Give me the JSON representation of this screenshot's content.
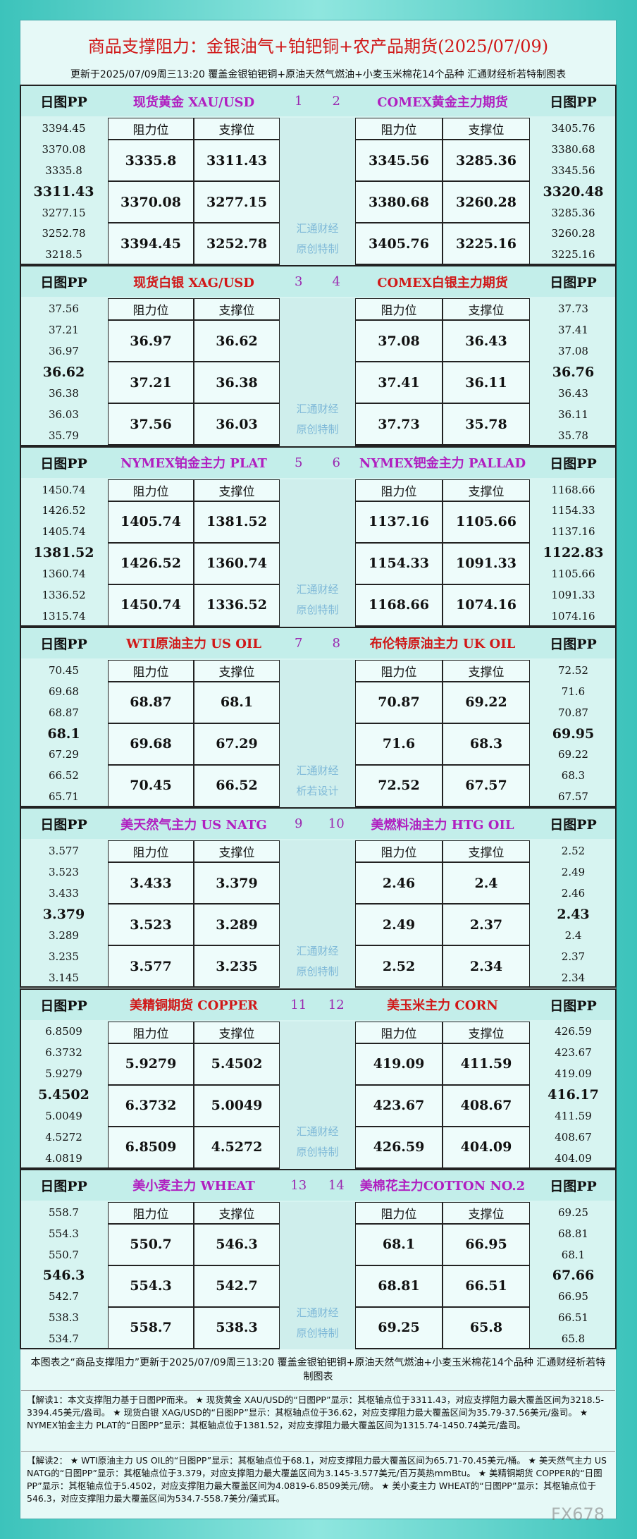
{
  "header": {
    "title": "商品支撑阻力：金银油气+铂钯铜+农产品期货(2025/07/09)",
    "subtitle": "更新于2025/07/09周三13:20 覆盖金银铂钯铜+原油天然气燃油+小麦玉米棉花14个品种 汇通财经析若特制图表"
  },
  "labels": {
    "pp": "日图PP",
    "res": "阻力位",
    "sup": "支撑位"
  },
  "sections": [
    {
      "color": "#b01fc0",
      "watermark": [
        "汇通财经",
        "原创特制"
      ],
      "left": {
        "name": "现货黄金 XAU/USD",
        "num": "1",
        "pp": [
          3394.45,
          3370.08,
          3335.8,
          3311.43,
          3277.15,
          3252.78,
          3218.5
        ],
        "rows": [
          [
            3335.8,
            3311.43
          ],
          [
            3370.08,
            3277.15
          ],
          [
            3394.45,
            3252.78
          ]
        ]
      },
      "right": {
        "name": "COMEX黄金主力期货",
        "num": "2",
        "pp": [
          3405.76,
          3380.68,
          3345.56,
          3320.48,
          3285.36,
          3260.28,
          3225.16
        ],
        "rows": [
          [
            3345.56,
            3285.36
          ],
          [
            3380.68,
            3260.28
          ],
          [
            3405.76,
            3225.16
          ]
        ]
      }
    },
    {
      "color": "#d01818",
      "watermark": [
        "汇通财经",
        "原创特制"
      ],
      "left": {
        "name": "现货白银 XAG/USD",
        "num": "3",
        "pp": [
          37.56,
          37.21,
          36.97,
          36.62,
          36.38,
          36.03,
          35.79
        ],
        "rows": [
          [
            36.97,
            36.62
          ],
          [
            37.21,
            36.38
          ],
          [
            37.56,
            36.03
          ]
        ]
      },
      "right": {
        "name": "COMEX白银主力期货",
        "num": "4",
        "pp": [
          37.73,
          37.41,
          37.08,
          36.76,
          36.43,
          36.11,
          35.78
        ],
        "rows": [
          [
            37.08,
            36.43
          ],
          [
            37.41,
            36.11
          ],
          [
            37.73,
            35.78
          ]
        ]
      }
    },
    {
      "color": "#b01fc0",
      "watermark": [
        "汇通财经",
        "原创特制"
      ],
      "left": {
        "name": "NYMEX铂金主力 PLAT",
        "num": "5",
        "pp": [
          1450.74,
          1426.52,
          1405.74,
          1381.52,
          1360.74,
          1336.52,
          1315.74
        ],
        "rows": [
          [
            1405.74,
            1381.52
          ],
          [
            1426.52,
            1360.74
          ],
          [
            1450.74,
            1336.52
          ]
        ]
      },
      "right": {
        "name": "NYMEX钯金主力 PALLAD",
        "num": "6",
        "pp": [
          1168.66,
          1154.33,
          1137.16,
          1122.83,
          1105.66,
          1091.33,
          1074.16
        ],
        "rows": [
          [
            1137.16,
            1105.66
          ],
          [
            1154.33,
            1091.33
          ],
          [
            1168.66,
            1074.16
          ]
        ]
      }
    },
    {
      "color": "#d01818",
      "watermark": [
        "汇通财经",
        "析若设计"
      ],
      "left": {
        "name": "WTI原油主力 US OIL",
        "num": "7",
        "pp": [
          70.45,
          69.68,
          68.87,
          68.1,
          67.29,
          66.52,
          65.71
        ],
        "rows": [
          [
            68.87,
            68.1
          ],
          [
            69.68,
            67.29
          ],
          [
            70.45,
            66.52
          ]
        ]
      },
      "right": {
        "name": "布伦特原油主力 UK OIL",
        "num": "8",
        "pp": [
          72.52,
          71.6,
          70.87,
          69.95,
          69.22,
          68.3,
          67.57
        ],
        "rows": [
          [
            70.87,
            69.22
          ],
          [
            71.6,
            68.3
          ],
          [
            72.52,
            67.57
          ]
        ]
      }
    },
    {
      "color": "#b01fc0",
      "watermark": [
        "汇通财经",
        "原创特制"
      ],
      "left": {
        "name": "美天然气主力 US NATG",
        "num": "9",
        "pp": [
          3.577,
          3.523,
          3.433,
          3.379,
          3.289,
          3.235,
          3.145
        ],
        "rows": [
          [
            3.433,
            3.379
          ],
          [
            3.523,
            3.289
          ],
          [
            3.577,
            3.235
          ]
        ]
      },
      "right": {
        "name": "美燃料油主力 HTG OIL",
        "num": "10",
        "pp": [
          2.52,
          2.49,
          2.46,
          2.43,
          2.4,
          2.37,
          2.34
        ],
        "rows": [
          [
            2.46,
            2.4
          ],
          [
            2.49,
            2.37
          ],
          [
            2.52,
            2.34
          ]
        ]
      }
    },
    {
      "color": "#d01818",
      "watermark": [
        "汇通财经",
        "原创特制"
      ],
      "left": {
        "name": "美精铜期货 COPPER",
        "num": "11",
        "pp": [
          6.8509,
          6.3732,
          5.9279,
          5.4502,
          5.0049,
          4.5272,
          4.0819
        ],
        "rows": [
          [
            5.9279,
            5.4502
          ],
          [
            6.3732,
            5.0049
          ],
          [
            6.8509,
            4.5272
          ]
        ]
      },
      "right": {
        "name": "美玉米主力 CORN",
        "num": "12",
        "pp": [
          426.59,
          423.67,
          419.09,
          416.17,
          411.59,
          408.67,
          404.09
        ],
        "rows": [
          [
            419.09,
            411.59
          ],
          [
            423.67,
            408.67
          ],
          [
            426.59,
            404.09
          ]
        ]
      }
    },
    {
      "color": "#b01fc0",
      "watermark": [
        "汇通财经",
        "原创特制"
      ],
      "left": {
        "name": "美小麦主力 WHEAT",
        "num": "13",
        "pp": [
          558.7,
          554.3,
          550.7,
          546.3,
          542.7,
          538.3,
          534.7
        ],
        "rows": [
          [
            550.7,
            546.3
          ],
          [
            554.3,
            542.7
          ],
          [
            558.7,
            538.3
          ]
        ]
      },
      "right": {
        "name": "美棉花主力COTTON NO.2",
        "num": "14",
        "pp": [
          69.25,
          68.81,
          68.1,
          67.66,
          66.95,
          66.51,
          65.8
        ],
        "rows": [
          [
            68.1,
            66.95
          ],
          [
            68.81,
            66.51
          ],
          [
            69.25,
            65.8
          ]
        ]
      }
    }
  ],
  "footer": {
    "text": "本图表之“商品支撑阻力”更新于2025/07/09周三13:20 覆盖金银铂钯铜+原油天然气燃油+小麦玉米棉花14个品种 汇通财经析若特制图表",
    "note1": "【解读1：本文支撑阻力基于日图PP而来。 ★ 现货黄金 XAU/USD的“日图PP”显示：其枢轴点位于3311.43，对应支撑阻力最大覆盖区间为3218.5-3394.45美元/盎司。 ★ 现货白银 XAG/USD的“日图PP”显示：其枢轴点位于36.62，对应支撑阻力最大覆盖区间为35.79-37.56美元/盎司。 ★ NYMEX铂金主力 PLAT的“日图PP”显示：其枢轴点位于1381.52，对应支撑阻力最大覆盖区间为1315.74-1450.74美元/盎司。",
    "note2": "【解读2： ★ WTI原油主力 US OIL的“日图PP”显示：其枢轴点位于68.1，对应支撑阻力最大覆盖区间为65.71-70.45美元/桶。 ★ 美天然气主力 US NATG的“日图PP”显示：其枢轴点位于3.379，对应支撑阻力最大覆盖区间为3.145-3.577美元/百万英热mmBtu。 ★ 美精铜期货 COPPER的“日图PP”显示：其枢轴点位于5.4502，对应支撑阻力最大覆盖区间为4.0819-6.8509美元/磅。 ★ 美小麦主力 WHEAT的“日图PP”显示：其枢轴点位于546.3，对应支撑阻力最大覆盖区间为534.7-558.7美分/蒲式耳。",
    "mark": "FX678"
  }
}
